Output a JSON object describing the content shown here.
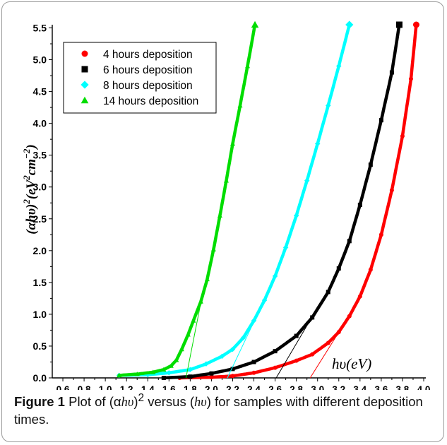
{
  "chart_data": {
    "type": "scatter",
    "x_label": {
      "expr": "hυ",
      "units": "(eV)"
    },
    "y_label": {
      "expr": "(αhυ)",
      "exp": "2",
      "units_pre": "(eV",
      "units_exp1": "2",
      "units_mid": "cm",
      "units_exp2": "−2",
      "units_post": ")"
    },
    "xlim": [
      0.5,
      4.02
    ],
    "ylim": [
      0.0,
      5.55
    ],
    "x_ticks": [
      "0.6",
      "0.8",
      "1.0",
      "1.2",
      "1.4",
      "1.6",
      "1.8",
      "2.0",
      "2.2",
      "2.4",
      "2.6",
      "2.8",
      "3.0",
      "3.2",
      "3.4",
      "3.6",
      "3.8",
      "4.0"
    ],
    "y_ticks": [
      "0.0",
      "0.5",
      "1.0",
      "1.5",
      "2.0",
      "2.5",
      "3.0",
      "3.5",
      "4.0",
      "4.5",
      "5.0",
      "5.5"
    ],
    "legend_position": "top-left",
    "series": [
      {
        "name": "4 hours deposition",
        "color": "#ff0000",
        "marker": "circle",
        "points": [
          [
            1.7,
            0.0
          ],
          [
            2.0,
            0.01
          ],
          [
            2.2,
            0.03
          ],
          [
            2.4,
            0.08
          ],
          [
            2.6,
            0.16
          ],
          [
            2.8,
            0.27
          ],
          [
            2.95,
            0.37
          ],
          [
            3.1,
            0.55
          ],
          [
            3.2,
            0.72
          ],
          [
            3.3,
            0.97
          ],
          [
            3.4,
            1.28
          ],
          [
            3.5,
            1.7
          ],
          [
            3.6,
            2.25
          ],
          [
            3.7,
            2.95
          ],
          [
            3.8,
            3.8
          ],
          [
            3.88,
            4.7
          ],
          [
            3.93,
            5.55
          ]
        ],
        "tangent": [
          [
            2.93,
            0.0
          ],
          [
            3.4,
            1.25
          ]
        ]
      },
      {
        "name": "6 hours deposition",
        "color": "#000000",
        "marker": "square",
        "points": [
          [
            1.55,
            0.0
          ],
          [
            1.8,
            0.02
          ],
          [
            2.0,
            0.07
          ],
          [
            2.2,
            0.14
          ],
          [
            2.4,
            0.25
          ],
          [
            2.6,
            0.42
          ],
          [
            2.8,
            0.66
          ],
          [
            2.95,
            0.95
          ],
          [
            3.1,
            1.35
          ],
          [
            3.2,
            1.72
          ],
          [
            3.3,
            2.15
          ],
          [
            3.4,
            2.72
          ],
          [
            3.5,
            3.35
          ],
          [
            3.6,
            4.05
          ],
          [
            3.7,
            4.8
          ],
          [
            3.77,
            5.55
          ]
        ],
        "tangent": [
          [
            2.61,
            0.0
          ],
          [
            2.97,
            1.02
          ]
        ]
      },
      {
        "name": "8 hours deposition",
        "color": "#00ffff",
        "marker": "diamond",
        "points": [
          [
            1.13,
            0.04
          ],
          [
            1.4,
            0.05
          ],
          [
            1.6,
            0.08
          ],
          [
            1.8,
            0.13
          ],
          [
            1.95,
            0.22
          ],
          [
            2.1,
            0.34
          ],
          [
            2.2,
            0.45
          ],
          [
            2.3,
            0.63
          ],
          [
            2.4,
            0.9
          ],
          [
            2.5,
            1.22
          ],
          [
            2.6,
            1.6
          ],
          [
            2.7,
            2.05
          ],
          [
            2.8,
            2.55
          ],
          [
            2.9,
            3.1
          ],
          [
            3.0,
            3.68
          ],
          [
            3.1,
            4.28
          ],
          [
            3.2,
            4.9
          ],
          [
            3.3,
            5.55
          ]
        ],
        "tangent": [
          [
            2.15,
            0.0
          ],
          [
            2.4,
            0.88
          ]
        ]
      },
      {
        "name": "14 hours deposition",
        "color": "#00dd00",
        "marker": "triangle",
        "points": [
          [
            1.13,
            0.04
          ],
          [
            1.3,
            0.06
          ],
          [
            1.45,
            0.09
          ],
          [
            1.55,
            0.13
          ],
          [
            1.62,
            0.19
          ],
          [
            1.67,
            0.28
          ],
          [
            1.72,
            0.45
          ],
          [
            1.78,
            0.68
          ],
          [
            1.83,
            0.9
          ],
          [
            1.9,
            1.2
          ],
          [
            1.96,
            1.55
          ],
          [
            2.02,
            2.02
          ],
          [
            2.08,
            2.55
          ],
          [
            2.14,
            3.1
          ],
          [
            2.2,
            3.68
          ],
          [
            2.27,
            4.28
          ],
          [
            2.34,
            4.9
          ],
          [
            2.41,
            5.55
          ]
        ],
        "tangent": [
          [
            1.76,
            0.0
          ],
          [
            1.92,
            1.35
          ]
        ]
      }
    ]
  },
  "caption": {
    "label": "Figure 1",
    "text_1": " Plot of (α",
    "h1": "hυ",
    "text_2": ")",
    "sup": "2",
    "text_3": " versus (",
    "h2": "hυ",
    "text_4": ") for samples with different deposition times."
  }
}
